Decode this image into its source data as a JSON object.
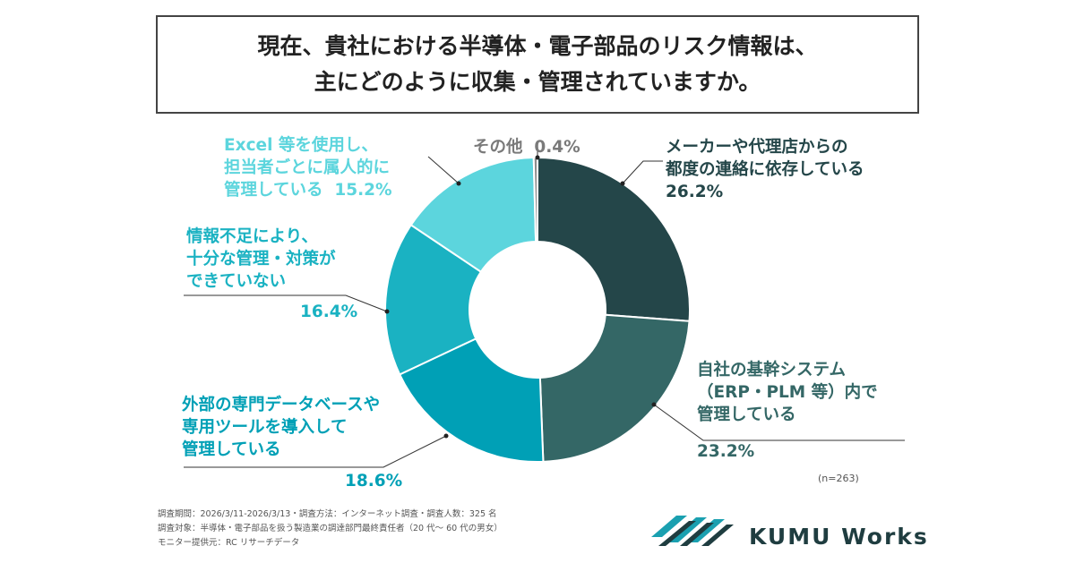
{
  "title": {
    "line1": "現在、貴社における半導体・電子部品のリスク情報は、",
    "line2": "主にどのように収集・管理されていますか。"
  },
  "chart_data": {
    "type": "pie",
    "donut": true,
    "sample_note": "(n=263)",
    "slices": [
      {
        "label_lines": [
          "メーカーや代理店からの",
          "都度の連絡に依存している"
        ],
        "pct_text": "26.2%",
        "value": 26.2,
        "color": "#244649"
      },
      {
        "label_lines": [
          "自社の基幹システム",
          "（ERP・PLM 等）内で",
          "管理している"
        ],
        "pct_text": "23.2%",
        "value": 23.2,
        "color": "#346766"
      },
      {
        "label_lines": [
          "外部の専門データベースや",
          "専用ツールを導入して",
          "管理している"
        ],
        "pct_text": "18.6%",
        "value": 18.6,
        "color": "#00A0B6"
      },
      {
        "label_lines": [
          "情報不足により、",
          "十分な管理・対策が",
          "できていない"
        ],
        "pct_text": "16.4%",
        "value": 16.4,
        "color": "#1AB2C2"
      },
      {
        "label_lines": [
          "Excel 等を使用し、",
          "担当者ごとに属人的に",
          "管理している"
        ],
        "pct_text": "15.2%",
        "value": 15.2,
        "color": "#5CD5DD"
      },
      {
        "label_lines": [
          "その他"
        ],
        "pct_text": "0.4%",
        "value": 0.4,
        "color": "#8C8C8C"
      }
    ]
  },
  "notes": {
    "line1": "調査期間：2026/3/11-2026/3/13・調査方法：インターネット調査・調査人数：325 名",
    "line2": "調査対象：半導体・電子部品を扱う製造業の調達部門最終責任者（20 代〜 60 代の男女）",
    "line3": "モニター提供元：RC リサーチデータ"
  },
  "logo": {
    "text": "KUMU Works",
    "color": "#1f3d40",
    "accent": "#1aa0b0"
  }
}
